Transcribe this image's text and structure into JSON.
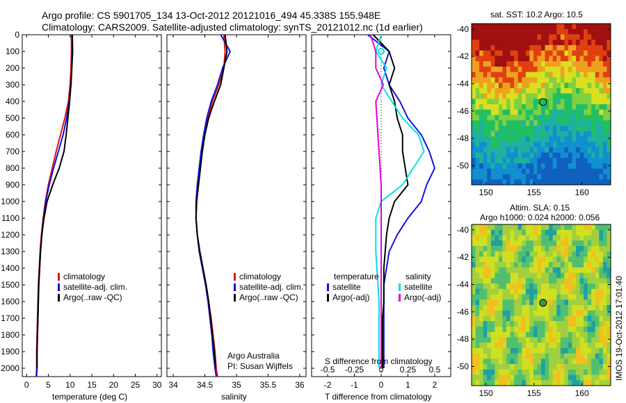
{
  "header": {
    "line1": "Argo profile: CS 5901705_134 13-Oct-2012 20121016_494 45.338S 155.948E",
    "line2": "Climatology: CARS2009. Satellite-adjusted climatology: synTS_20121012.nc (1d earlier)"
  },
  "colors": {
    "climatology": "#e01010",
    "satellite": "#1010e0",
    "argo": "#000000",
    "satellite_s": "#00e0e0",
    "argo_s": "#e000e0"
  },
  "panels": {
    "temperature": {
      "xlabel": "temperature (deg C)",
      "legend": [
        "climatology",
        "satellite-adj. clim.",
        "Argo(..raw -QC)"
      ]
    },
    "salinity": {
      "xlabel": "salinity",
      "legend": [
        "climatology",
        "satellite-adj. clim.",
        "Argo(..raw -QC)"
      ],
      "note1": "Argo Australia",
      "note2": "PI: Susan Wijffels"
    },
    "difference": {
      "xlabel": "T difference from climatology",
      "toplabel": "S difference from climatology",
      "legend_head_t": "temperature",
      "legend_head_s": "salinity",
      "legend_t": [
        "satellite",
        "Argo(-adj)"
      ],
      "legend_s": [
        "satellite",
        "Argo(-adj)"
      ]
    }
  },
  "maps": {
    "sst_title": "sat. SST: 10.2 Argo: 10.5",
    "sla_title1": "Altim. SLA: 0.15",
    "sla_title2": "Argo h1000: 0.024 h2000: 0.056",
    "stamp": "IMOS 19-Oct-2012 17:01:40",
    "yticks": [
      "-40",
      "-42",
      "-44",
      "-46",
      "-48",
      "-50"
    ],
    "xticks": [
      "150",
      "155",
      "160"
    ],
    "float_lon": 155.948,
    "float_lat": -45.338
  },
  "chart_data": [
    {
      "type": "line",
      "xlabel": "temperature (deg C)",
      "ylabel": "",
      "xlim": [
        -1,
        31
      ],
      "ylim": [
        2050,
        0
      ],
      "xticks": [
        "0",
        "5",
        "10",
        "15",
        "20",
        "25",
        "30"
      ],
      "xtick_values": [
        0,
        5,
        10,
        15,
        20,
        25,
        30
      ],
      "yticks": [
        "0",
        "100",
        "200",
        "300",
        "400",
        "500",
        "600",
        "700",
        "800",
        "900",
        "1000",
        "1100",
        "1200",
        "1300",
        "1400",
        "1500",
        "1600",
        "1700",
        "1800",
        "1900",
        "2000"
      ],
      "series": [
        {
          "name": "climatology",
          "color": "#e01010",
          "x": [
            10.3,
            10.3,
            10.2,
            10.0,
            9.6,
            8.8,
            7.8,
            6.8,
            5.9,
            5.0,
            4.3,
            3.8,
            3.4,
            3.1,
            2.9,
            2.7,
            2.6,
            2.5,
            2.4,
            2.3,
            2.3,
            2.2
          ],
          "y": [
            0,
            100,
            200,
            300,
            400,
            500,
            600,
            700,
            800,
            900,
            1000,
            1100,
            1200,
            1300,
            1400,
            1500,
            1600,
            1700,
            1800,
            1900,
            2000,
            2050
          ]
        },
        {
          "name": "satellite-adj. clim.",
          "color": "#1010e0",
          "x": [
            10.5,
            10.5,
            10.4,
            10.2,
            9.8,
            9.2,
            8.4,
            7.3,
            6.2,
            5.2,
            4.4,
            3.9,
            3.5,
            3.2,
            3.0,
            2.8,
            2.7,
            2.6,
            2.5,
            2.4,
            2.4,
            2.3
          ],
          "y": [
            0,
            100,
            200,
            300,
            400,
            500,
            600,
            700,
            800,
            900,
            1000,
            1100,
            1200,
            1300,
            1400,
            1500,
            1600,
            1700,
            1800,
            1900,
            2000,
            2050
          ]
        },
        {
          "name": "Argo(..raw -QC)",
          "color": "#000000",
          "x": [
            10.5,
            10.6,
            10.4,
            10.2,
            9.9,
            9.5,
            9.1,
            8.6,
            7.5,
            6.0,
            4.7,
            4.0,
            3.5,
            3.2,
            3.0,
            2.8,
            2.7,
            2.6,
            2.5,
            2.4,
            2.4
          ],
          "y": [
            0,
            100,
            200,
            300,
            400,
            500,
            600,
            700,
            800,
            900,
            1000,
            1100,
            1200,
            1300,
            1400,
            1500,
            1600,
            1700,
            1800,
            1900,
            2000
          ]
        }
      ]
    },
    {
      "type": "line",
      "xlabel": "salinity",
      "xlim": [
        33.9,
        36.1
      ],
      "ylim": [
        2050,
        0
      ],
      "xticks": [
        "34",
        "34.5",
        "35",
        "35.5",
        "36"
      ],
      "xtick_values": [
        34,
        34.5,
        35,
        35.5,
        36
      ],
      "series": [
        {
          "name": "climatology",
          "color": "#e01010",
          "x": [
            34.8,
            34.82,
            34.8,
            34.72,
            34.62,
            34.55,
            34.5,
            34.45,
            34.42,
            34.39,
            34.37,
            34.36,
            34.38,
            34.42,
            34.47,
            34.52,
            34.56,
            34.6,
            34.63,
            34.66,
            34.68,
            34.7
          ],
          "y": [
            0,
            100,
            200,
            300,
            400,
            500,
            600,
            700,
            800,
            900,
            1000,
            1100,
            1200,
            1300,
            1400,
            1500,
            1600,
            1700,
            1800,
            1900,
            2000,
            2050
          ]
        },
        {
          "name": "satellite-adj. clim.",
          "color": "#1010e0",
          "x": [
            34.75,
            34.9,
            34.78,
            34.7,
            34.6,
            34.53,
            34.48,
            34.44,
            34.41,
            34.38,
            34.36,
            34.36,
            34.38,
            34.41,
            34.46,
            34.51,
            34.55,
            34.58,
            34.61,
            34.63,
            34.66,
            34.68
          ],
          "y": [
            0,
            100,
            200,
            300,
            400,
            500,
            600,
            700,
            800,
            900,
            1000,
            1100,
            1200,
            1300,
            1400,
            1500,
            1600,
            1700,
            1800,
            1900,
            2000,
            2050
          ]
        },
        {
          "name": "Argo(..raw -QC)",
          "color": "#000000",
          "x": [
            34.82,
            34.85,
            34.8,
            34.75,
            34.65,
            34.56,
            34.5,
            34.46,
            34.43,
            34.4,
            34.37,
            34.36,
            34.38,
            34.42,
            34.47,
            34.52,
            34.56,
            34.59,
            34.62,
            34.65,
            34.67
          ],
          "y": [
            0,
            100,
            200,
            300,
            400,
            500,
            600,
            700,
            800,
            900,
            1000,
            1100,
            1200,
            1300,
            1400,
            1500,
            1600,
            1700,
            1800,
            1900,
            2000
          ]
        }
      ]
    },
    {
      "type": "line",
      "xlabel": "T difference from climatology",
      "title": "S difference from climatology",
      "xlim": [
        -2.6,
        2.6
      ],
      "ylim": [
        2050,
        0
      ],
      "xticks": [
        "-2",
        "-1",
        "0",
        "1",
        "2"
      ],
      "xtick_values": [
        -2,
        -1,
        0,
        1,
        2
      ],
      "top_ticks": [
        "-0.5",
        "-0.25",
        "0",
        "0.25",
        "0.5"
      ],
      "series": [
        {
          "name": "temperature satellite",
          "color": "#1010e0",
          "x": [
            -0.5,
            0.3,
            0.1,
            0.3,
            0.7,
            1.0,
            1.5,
            1.8,
            2.0,
            1.7,
            1.5,
            1.0,
            0.6,
            0.3,
            0.2,
            0.1,
            0.1,
            0.1,
            0.1,
            0.1,
            0.1
          ],
          "y": [
            0,
            100,
            200,
            300,
            400,
            500,
            600,
            700,
            800,
            900,
            1000,
            1100,
            1200,
            1300,
            1400,
            1500,
            1600,
            1700,
            1800,
            1900,
            2000
          ]
        },
        {
          "name": "temperature Argo(-adj)",
          "color": "#000000",
          "x": [
            -0.3,
            0.3,
            0.5,
            0.3,
            0.5,
            0.6,
            0.8,
            0.8,
            0.9,
            1.0,
            0.5,
            0.3,
            0.2,
            0.15,
            0.1,
            0.1,
            0.1,
            0.05,
            0.05,
            0.05,
            0.05
          ],
          "y": [
            0,
            100,
            200,
            300,
            400,
            500,
            600,
            700,
            800,
            900,
            1000,
            1100,
            1200,
            1300,
            1400,
            1500,
            1600,
            1700,
            1800,
            1900,
            2000
          ]
        },
        {
          "name": "salinity satellite",
          "color": "#00e0e0",
          "x": [
            0.0,
            -0.05,
            0.05,
            0.0,
            0.1,
            0.2,
            0.35,
            0.4,
            0.3,
            0.2,
            0.0,
            -0.05,
            -0.05,
            -0.05,
            -0.04,
            -0.03,
            -0.02,
            -0.02,
            -0.02,
            -0.02,
            -0.02
          ],
          "y": [
            0,
            100,
            200,
            300,
            400,
            500,
            600,
            700,
            800,
            900,
            1000,
            1100,
            1200,
            1300,
            1400,
            1500,
            1600,
            1700,
            1800,
            1900,
            2000
          ]
        },
        {
          "name": "salinity Argo(-adj)",
          "color": "#e000e0",
          "x": [
            -0.1,
            -0.05,
            -0.05,
            0.02,
            -0.05,
            -0.04,
            -0.03,
            -0.02,
            -0.01,
            0.0,
            0.0,
            0.0,
            0.0,
            0.0,
            0.0,
            0.0,
            0.0,
            0.0,
            0.0,
            0.0,
            0.0
          ],
          "y": [
            0,
            100,
            200,
            300,
            400,
            500,
            600,
            700,
            800,
            900,
            1000,
            1100,
            1200,
            1300,
            1400,
            1500,
            1600,
            1700,
            1800,
            1900,
            2000
          ]
        }
      ]
    }
  ]
}
